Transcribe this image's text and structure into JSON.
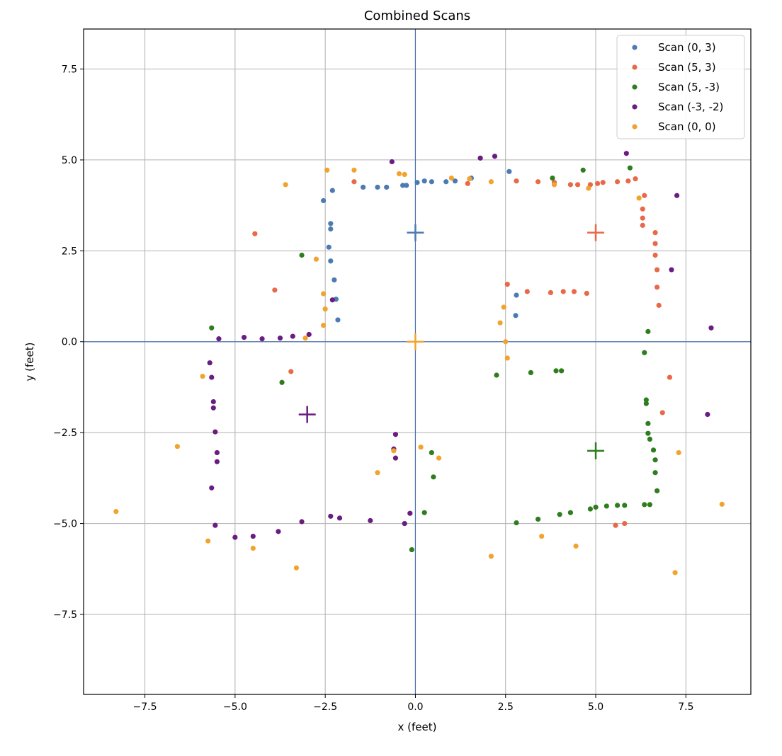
{
  "chart_data": {
    "type": "scatter",
    "title": "Combined Scans",
    "xlabel": "x (feet)",
    "ylabel": "y (feet)",
    "xlim": [
      -9.2,
      9.3
    ],
    "ylim": [
      -9.7,
      8.6
    ],
    "xticks": [
      -7.5,
      -5.0,
      -2.5,
      0.0,
      2.5,
      5.0,
      7.5
    ],
    "yticks": [
      -7.5,
      -5.0,
      -2.5,
      0.0,
      2.5,
      5.0,
      7.5
    ],
    "xtick_labels": [
      "−7.5",
      "−5.0",
      "−2.5",
      "0.0",
      "2.5",
      "5.0",
      "7.5"
    ],
    "ytick_labels": [
      "−7.5",
      "−5.0",
      "−2.5",
      "0.0",
      "2.5",
      "5.0",
      "7.5"
    ],
    "grid": true,
    "legend_position": "top-right",
    "reference_lines": {
      "x": 0,
      "y": 0,
      "color": "#4c72b0"
    },
    "series": [
      {
        "name": "Scan (0, 3)",
        "color": "#4c7ab3",
        "origin": [
          0,
          3
        ],
        "points": [
          [
            -2.55,
            3.88
          ],
          [
            -2.3,
            4.16
          ],
          [
            -1.45,
            4.25
          ],
          [
            -1.05,
            4.25
          ],
          [
            -0.8,
            4.25
          ],
          [
            -0.35,
            4.3
          ],
          [
            -0.25,
            4.3
          ],
          [
            0.05,
            4.38
          ],
          [
            0.25,
            4.42
          ],
          [
            0.45,
            4.4
          ],
          [
            0.85,
            4.4
          ],
          [
            1.1,
            4.42
          ],
          [
            1.55,
            4.5
          ],
          [
            2.6,
            4.68
          ],
          [
            -2.35,
            3.25
          ],
          [
            -2.35,
            3.1
          ],
          [
            -2.4,
            2.6
          ],
          [
            -2.35,
            2.22
          ],
          [
            -2.25,
            1.7
          ],
          [
            -2.2,
            1.17
          ],
          [
            -2.15,
            0.6
          ],
          [
            2.8,
            1.28
          ],
          [
            2.78,
            0.72
          ]
        ]
      },
      {
        "name": "Scan (5, 3)",
        "color": "#e8694a",
        "origin": [
          5,
          3
        ],
        "points": [
          [
            -1.7,
            4.4
          ],
          [
            1.45,
            4.35
          ],
          [
            2.8,
            4.42
          ],
          [
            3.4,
            4.4
          ],
          [
            3.85,
            4.38
          ],
          [
            4.3,
            4.32
          ],
          [
            4.5,
            4.32
          ],
          [
            4.85,
            4.32
          ],
          [
            5.05,
            4.35
          ],
          [
            5.2,
            4.38
          ],
          [
            5.6,
            4.4
          ],
          [
            5.9,
            4.42
          ],
          [
            6.1,
            4.48
          ],
          [
            6.35,
            4.02
          ],
          [
            6.3,
            3.65
          ],
          [
            6.3,
            3.4
          ],
          [
            6.3,
            3.2
          ],
          [
            6.65,
            3.0
          ],
          [
            6.65,
            2.7
          ],
          [
            6.65,
            2.38
          ],
          [
            6.7,
            1.98
          ],
          [
            6.7,
            1.5
          ],
          [
            6.75,
            1.0
          ],
          [
            2.55,
            1.58
          ],
          [
            3.1,
            1.38
          ],
          [
            3.75,
            1.35
          ],
          [
            4.1,
            1.38
          ],
          [
            4.4,
            1.38
          ],
          [
            4.75,
            1.33
          ],
          [
            -4.45,
            2.97
          ],
          [
            -3.9,
            1.42
          ],
          [
            -3.45,
            -0.82
          ],
          [
            7.05,
            -0.98
          ],
          [
            6.85,
            -1.95
          ],
          [
            5.55,
            -5.05
          ],
          [
            5.8,
            -5.0
          ]
        ]
      },
      {
        "name": "Scan (5, -3)",
        "color": "#2e7d1e",
        "origin": [
          5,
          -3
        ],
        "points": [
          [
            3.8,
            4.5
          ],
          [
            4.65,
            4.72
          ],
          [
            5.95,
            4.78
          ],
          [
            -3.15,
            2.38
          ],
          [
            -5.65,
            0.38
          ],
          [
            -3.7,
            -1.12
          ],
          [
            6.45,
            0.28
          ],
          [
            6.35,
            -0.3
          ],
          [
            2.25,
            -0.92
          ],
          [
            3.2,
            -0.85
          ],
          [
            3.9,
            -0.8
          ],
          [
            4.05,
            -0.8
          ],
          [
            6.4,
            -1.6
          ],
          [
            6.4,
            -1.7
          ],
          [
            6.45,
            -2.25
          ],
          [
            6.45,
            -2.52
          ],
          [
            6.5,
            -2.68
          ],
          [
            6.6,
            -2.98
          ],
          [
            6.65,
            -3.25
          ],
          [
            6.65,
            -3.6
          ],
          [
            6.7,
            -4.1
          ],
          [
            6.35,
            -4.48
          ],
          [
            6.5,
            -4.48
          ],
          [
            5.8,
            -4.5
          ],
          [
            5.6,
            -4.5
          ],
          [
            5.3,
            -4.52
          ],
          [
            5.0,
            -4.55
          ],
          [
            4.85,
            -4.6
          ],
          [
            4.3,
            -4.7
          ],
          [
            4.0,
            -4.75
          ],
          [
            3.4,
            -4.88
          ],
          [
            2.8,
            -4.98
          ],
          [
            0.45,
            -3.05
          ],
          [
            0.5,
            -3.72
          ],
          [
            0.25,
            -4.7
          ],
          [
            -0.1,
            -5.72
          ]
        ]
      },
      {
        "name": "Scan (-3, -2)",
        "color": "#6a1d80",
        "origin": [
          -3,
          -2
        ],
        "points": [
          [
            -0.65,
            4.95
          ],
          [
            1.8,
            5.05
          ],
          [
            2.2,
            5.1
          ],
          [
            5.85,
            5.18
          ],
          [
            7.25,
            4.02
          ],
          [
            7.1,
            1.98
          ],
          [
            8.2,
            0.38
          ],
          [
            8.1,
            -2.0
          ],
          [
            -2.3,
            1.15
          ],
          [
            -5.45,
            0.08
          ],
          [
            -4.75,
            0.12
          ],
          [
            -4.25,
            0.08
          ],
          [
            -3.75,
            0.1
          ],
          [
            -3.4,
            0.15
          ],
          [
            -2.95,
            0.2
          ],
          [
            -5.7,
            -0.58
          ],
          [
            -5.65,
            -0.98
          ],
          [
            -5.6,
            -1.65
          ],
          [
            -5.6,
            -1.82
          ],
          [
            -5.55,
            -2.48
          ],
          [
            -5.5,
            -3.05
          ],
          [
            -5.5,
            -3.3
          ],
          [
            -5.65,
            -4.02
          ],
          [
            -5.55,
            -5.05
          ],
          [
            -5.0,
            -5.38
          ],
          [
            -4.5,
            -5.35
          ],
          [
            -3.8,
            -5.22
          ],
          [
            -3.15,
            -4.95
          ],
          [
            -2.35,
            -4.8
          ],
          [
            -2.1,
            -4.85
          ],
          [
            -1.25,
            -4.92
          ],
          [
            -0.55,
            -2.55
          ],
          [
            -0.6,
            -2.95
          ],
          [
            -0.55,
            -3.2
          ],
          [
            -0.3,
            -5.0
          ],
          [
            -0.15,
            -4.72
          ]
        ]
      },
      {
        "name": "Scan (0, 0)",
        "color": "#f2a32e",
        "origin": [
          0,
          0
        ],
        "points": [
          [
            -3.6,
            4.32
          ],
          [
            -2.45,
            4.72
          ],
          [
            -1.7,
            4.72
          ],
          [
            -0.45,
            4.62
          ],
          [
            -0.3,
            4.6
          ],
          [
            1.0,
            4.5
          ],
          [
            1.5,
            4.48
          ],
          [
            2.1,
            4.4
          ],
          [
            3.85,
            4.32
          ],
          [
            4.8,
            4.22
          ],
          [
            6.2,
            3.95
          ],
          [
            -2.75,
            2.27
          ],
          [
            -2.55,
            1.32
          ],
          [
            -2.5,
            0.9
          ],
          [
            -2.55,
            0.45
          ],
          [
            -3.05,
            0.1
          ],
          [
            2.45,
            0.95
          ],
          [
            2.35,
            0.52
          ],
          [
            2.5,
            0.0
          ],
          [
            2.55,
            -0.45
          ],
          [
            -5.9,
            -0.95
          ],
          [
            -6.6,
            -2.88
          ],
          [
            -8.3,
            -4.67
          ],
          [
            -5.75,
            -5.48
          ],
          [
            -4.5,
            -5.68
          ],
          [
            -3.3,
            -6.22
          ],
          [
            -1.05,
            -3.6
          ],
          [
            -0.6,
            -3.0
          ],
          [
            0.15,
            -2.9
          ],
          [
            0.65,
            -3.2
          ],
          [
            3.5,
            -5.35
          ],
          [
            4.45,
            -5.62
          ],
          [
            2.1,
            -5.9
          ],
          [
            7.3,
            -3.05
          ],
          [
            7.2,
            -6.35
          ],
          [
            8.5,
            -4.47
          ]
        ]
      }
    ]
  }
}
